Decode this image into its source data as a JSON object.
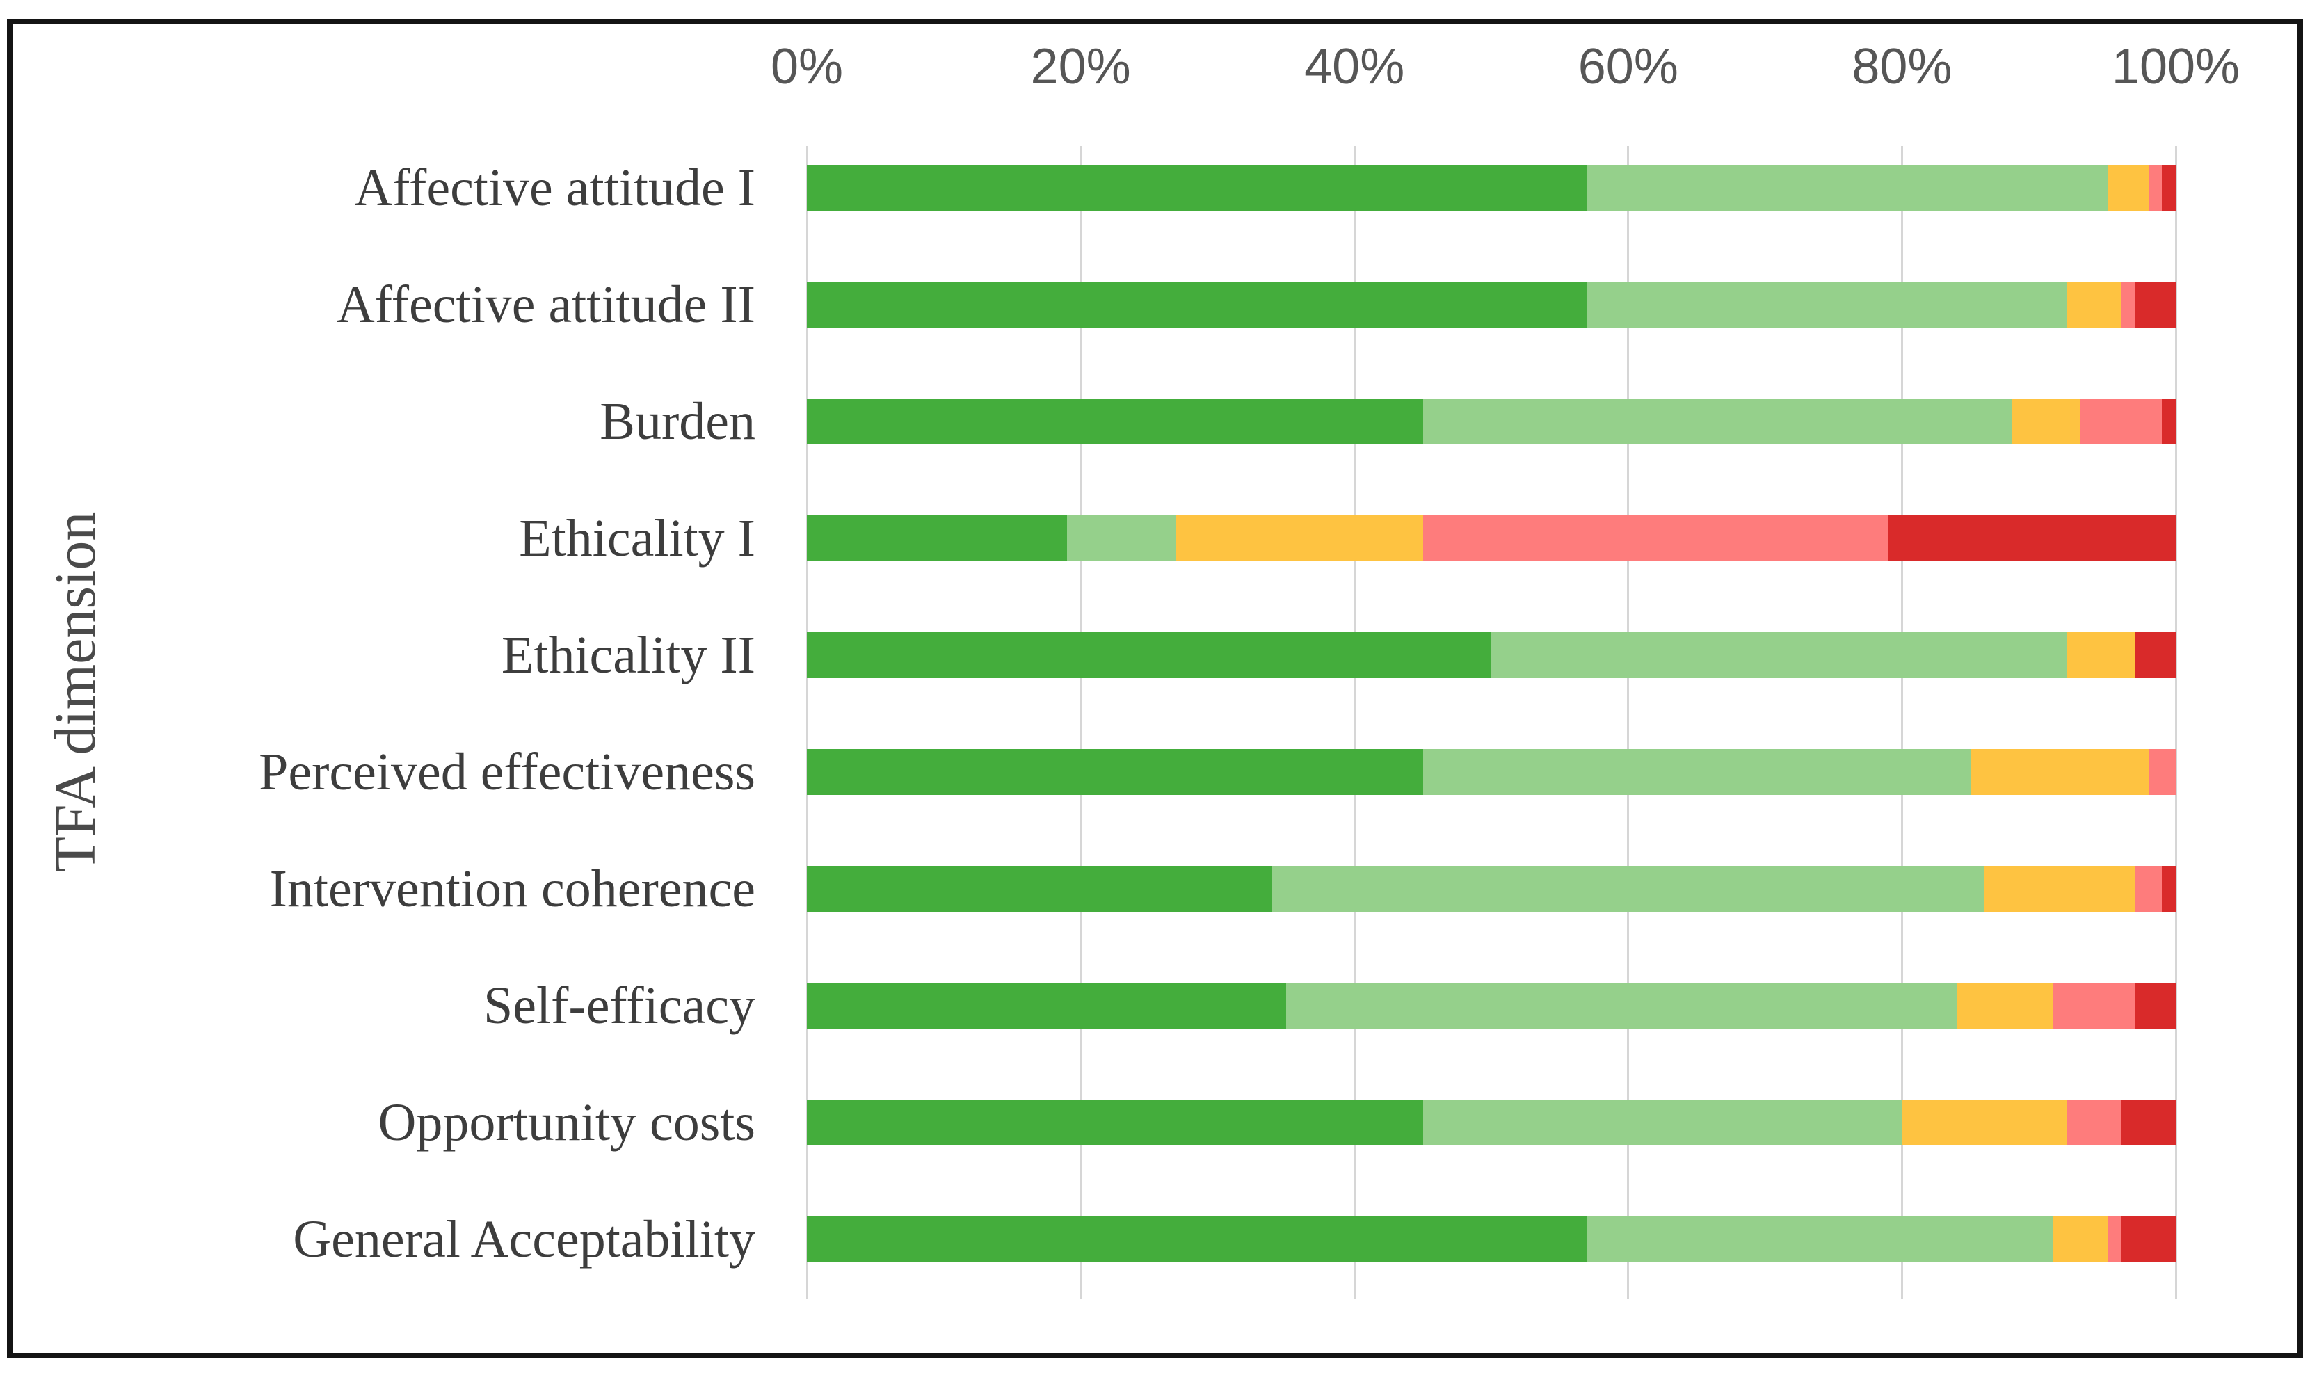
{
  "figure": {
    "border_color": "#141414",
    "background_color": "#ffffff",
    "gridline_color": "#d6d6d6"
  },
  "chart_data": {
    "type": "bar",
    "orientation": "horizontal",
    "stacked": true,
    "title": "",
    "xlabel": "",
    "ylabel": "TFA dimension",
    "legend": "none",
    "x_axis": {
      "position": "top",
      "range": [
        0,
        100
      ],
      "unit": "percent",
      "tick_labels": [
        "0%",
        "20%",
        "40%",
        "60%",
        "80%",
        "100%"
      ],
      "tick_values": [
        0,
        20,
        40,
        60,
        80,
        100
      ],
      "grid": true
    },
    "categories": [
      "Affective attitude I",
      "Affective attitude II",
      "Burden",
      "Ethicality I",
      "Ethicality II",
      "Perceived effectiveness",
      "Intervention coherence",
      "Self-efficacy",
      "Opportunity costs",
      "General Acceptability"
    ],
    "series": [
      {
        "name": "dark-green",
        "color": "#44ad3c",
        "values": [
          57,
          57,
          45,
          19,
          50,
          45,
          34,
          35,
          45,
          57
        ]
      },
      {
        "name": "light-green",
        "color": "#95d08b",
        "values": [
          38,
          35,
          43,
          8,
          42,
          40,
          52,
          49,
          35,
          34
        ]
      },
      {
        "name": "amber",
        "color": "#fec341",
        "values": [
          3,
          4,
          5,
          18,
          5,
          13,
          11,
          7,
          12,
          4
        ]
      },
      {
        "name": "salmon",
        "color": "#fe7c7c",
        "values": [
          1,
          1,
          6,
          34,
          0,
          2,
          2,
          6,
          4,
          1
        ]
      },
      {
        "name": "red",
        "color": "#d92a2a",
        "values": [
          1,
          3,
          1,
          21,
          3,
          0,
          1,
          3,
          4,
          4
        ]
      }
    ]
  }
}
